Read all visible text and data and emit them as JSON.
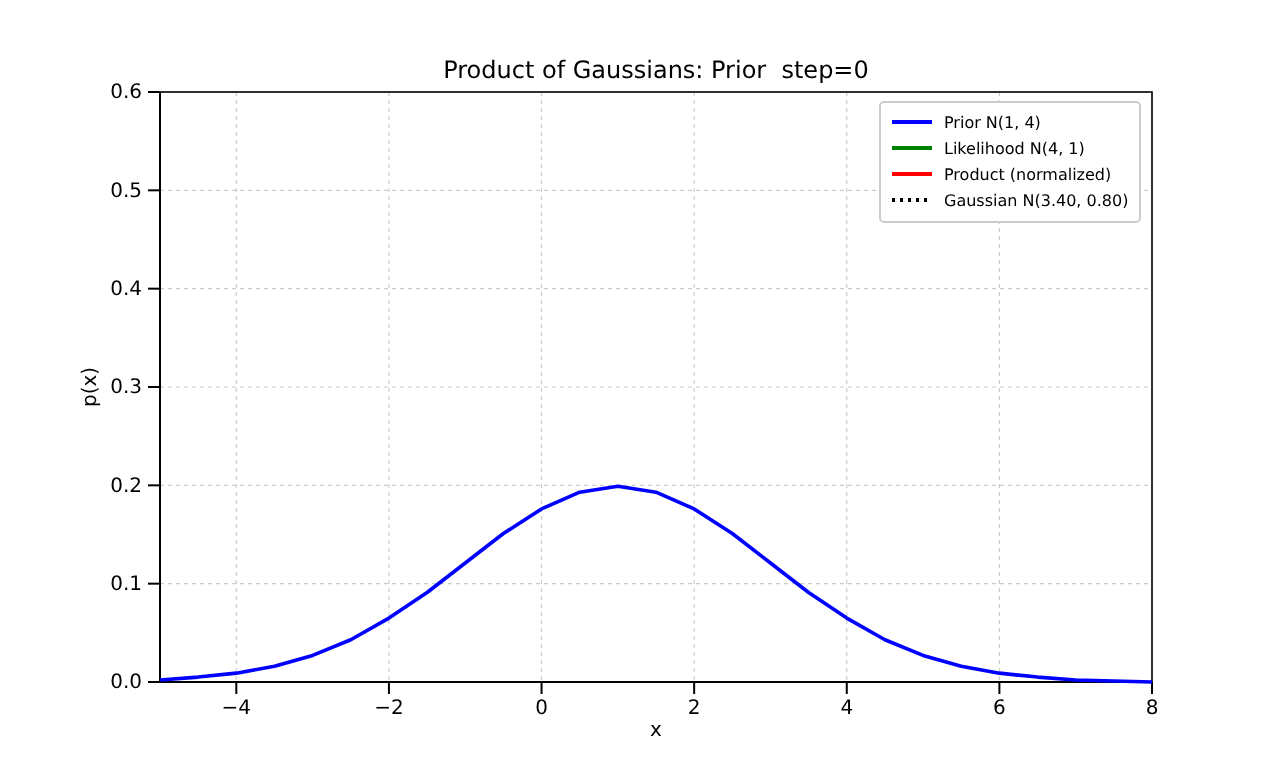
{
  "chart_data": {
    "type": "line",
    "title": "Product of Gaussians: Prior  step=0",
    "xlabel": "x",
    "ylabel": "p(x)",
    "x": [
      -5,
      -4.5,
      -4,
      -3.5,
      -3,
      -2.5,
      -2,
      -1.5,
      -1,
      -0.5,
      0,
      0.5,
      1,
      1.5,
      2,
      2.5,
      3,
      3.5,
      4,
      4.5,
      5,
      5.5,
      6,
      6.5,
      7,
      7.5,
      8
    ],
    "series": [
      {
        "name": "Prior N(1, 4)",
        "color": "#0000ff",
        "values": [
          0.002,
          0.005,
          0.009,
          0.016,
          0.027,
          0.043,
          0.065,
          0.091,
          0.121,
          0.151,
          0.176,
          0.193,
          0.199,
          0.193,
          0.176,
          0.151,
          0.121,
          0.091,
          0.065,
          0.043,
          0.027,
          0.016,
          0.009,
          0.005,
          0.002,
          0.001,
          0.0
        ]
      },
      {
        "name": "Likelihood N(4, 1)",
        "color": "#008000",
        "values": [
          null,
          null,
          null,
          null,
          null,
          null,
          null,
          null,
          null,
          null,
          null,
          null,
          null,
          null,
          null,
          null,
          null,
          null,
          null,
          null,
          null,
          null,
          null,
          null,
          null,
          null,
          null
        ]
      },
      {
        "name": "Product (normalized)",
        "color": "#ff0000",
        "values": [
          null,
          null,
          null,
          null,
          null,
          null,
          null,
          null,
          null,
          null,
          null,
          null,
          null,
          null,
          null,
          null,
          null,
          null,
          null,
          null,
          null,
          null,
          null,
          null,
          null,
          null,
          null
        ]
      },
      {
        "name": "Gaussian N(3.40, 0.80)",
        "color": "#000000",
        "line_style": "dotted",
        "values": [
          null,
          null,
          null,
          null,
          null,
          null,
          null,
          null,
          null,
          null,
          null,
          null,
          null,
          null,
          null,
          null,
          null,
          null,
          null,
          null,
          null,
          null,
          null,
          null,
          null,
          null,
          null
        ]
      }
    ],
    "xlim": [
      -5,
      8
    ],
    "xticks": [
      {
        "value": -4,
        "label": "−4"
      },
      {
        "value": -2,
        "label": "−2"
      },
      0,
      2,
      4,
      6,
      8
    ],
    "ylim": [
      0,
      0.6
    ],
    "yticks": [
      {
        "value": 0,
        "label": "0.0"
      },
      0.1,
      0.2,
      0.3,
      0.4,
      0.5,
      0.6
    ],
    "grid": true,
    "legend": "top right"
  }
}
